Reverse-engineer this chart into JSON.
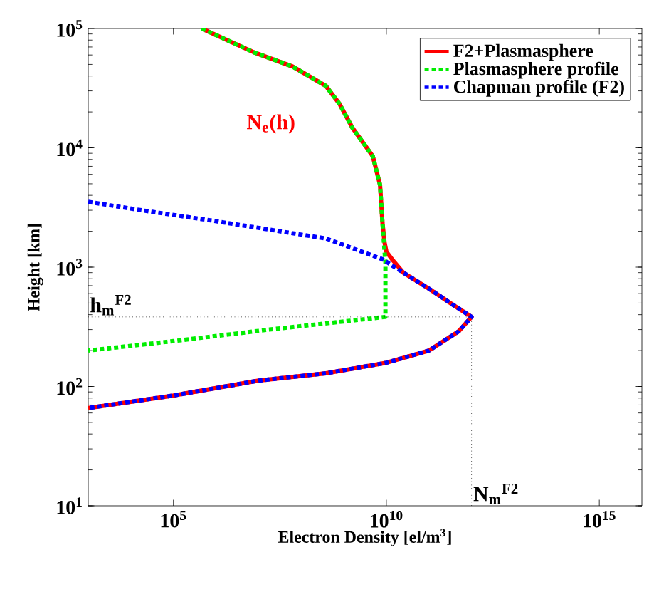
{
  "chart_data": {
    "type": "line",
    "xlabel": "Electron Density [el/m$^{3}$]",
    "ylabel": "Height [km]",
    "log": "xy",
    "xlim": [
      1000.0,
      1e+16
    ],
    "ylim": [
      10,
      100000
    ],
    "xticks": [
      {
        "value": 100000.0,
        "label": "10$^{5}$"
      },
      {
        "value": 10000000000.0,
        "label": "10$^{10}$"
      },
      {
        "value": 1000000000000000.0,
        "label": "10$^{15}$"
      }
    ],
    "yticks": [
      {
        "value": 10,
        "label": "10$^{1}$"
      },
      {
        "value": 100,
        "label": "10$^{2}$"
      },
      {
        "value": 1000,
        "label": "10$^{3}$"
      },
      {
        "value": 10000,
        "label": "10$^{4}$"
      },
      {
        "value": 100000,
        "label": "10$^{5}$"
      }
    ],
    "legend": "top right",
    "grid": false,
    "series": [
      {
        "name": "F2+Plasmasphere",
        "color": "#ff0000",
        "line_style": "solid",
        "x": [
          460000.0,
          7900000.0,
          63000000.0,
          380000000.0,
          790000000.0,
          1600000000.0,
          4800000000.0,
          7100000000.0,
          8100000000.0,
          9100000000.0,
          10000000000.0,
          14000000000.0,
          25000000000.0,
          100000000000.0,
          320000000000.0,
          1000000000000.0,
          500000000000.0,
          100000000000.0,
          10000000000.0,
          380000000.0,
          10000000.0,
          100000.0,
          1000.0
        ],
        "values": [
          100000,
          63000,
          48000,
          33000,
          23400,
          14700,
          8500,
          4900,
          2350,
          1600,
          1350,
          1150,
          900,
          660,
          500,
          383,
          290,
          200,
          158,
          129,
          112,
          84,
          66
        ]
      },
      {
        "name": "Plasmasphere profile",
        "color": "#00ee00",
        "line_style": "dashdot",
        "x": [
          460000.0,
          7900000.0,
          63000000.0,
          380000000.0,
          790000000.0,
          1600000000.0,
          4800000000.0,
          7100000000.0,
          8100000000.0,
          9500000000.0,
          9500000000.0,
          18000000.0,
          100000.0,
          1000.0
        ],
        "values": [
          100000,
          63000,
          48000,
          33000,
          23400,
          14700,
          8500,
          4900,
          2350,
          1090,
          383,
          300,
          240,
          200
        ]
      },
      {
        "name": "Chapman profile (F2)",
        "color": "#0000ff",
        "line_style": "dashdot",
        "x": [
          1000.0,
          18000.0,
          790000.0,
          380000000.0,
          7900000000.0,
          25000000000.0,
          100000000000.0,
          320000000000.0,
          1000000000000.0,
          500000000000.0,
          100000000000.0,
          10000000000.0,
          380000000.0,
          10000000.0,
          100000.0,
          1000.0
        ],
        "values": [
          3530,
          3000,
          2460,
          1740,
          1170,
          900,
          660,
          500,
          383,
          290,
          200,
          158,
          129,
          112,
          84,
          66
        ]
      }
    ],
    "ref_lines": [
      {
        "axis": "y",
        "value": 383,
        "label": "h$_{m}$$^{F2}$",
        "line_style": "dotted"
      },
      {
        "axis": "x",
        "value": 1000000000000.0,
        "label": "N$_{m}$$^{F2}$",
        "line_style": "dotted"
      }
    ],
    "annotations": [
      "N$_{e}$(h)"
    ]
  }
}
